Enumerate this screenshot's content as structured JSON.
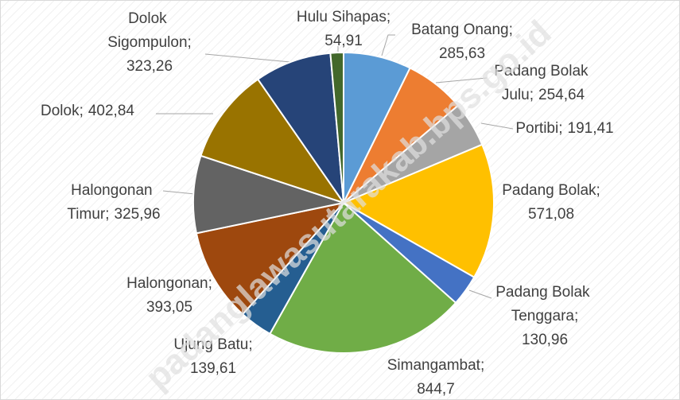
{
  "chart_data": {
    "type": "pie",
    "categories": [
      "Batang Onang;",
      "Padang Bolak Julu;",
      "Portibi;",
      "Padang Bolak;",
      "Padang Bolak Tenggara;",
      "Simangambat;",
      "Ujung Batu;",
      "Halongonan;",
      "Halongonan Timur;",
      "Dolok;",
      "Dolok Sigompulon;",
      "Hulu Sihapas;"
    ],
    "values": [
      285.63,
      254.64,
      191.41,
      571.08,
      130.96,
      844.7,
      139.61,
      393.05,
      325.96,
      402.84,
      323.26,
      54.91
    ],
    "value_labels": [
      "285,63",
      "254,64",
      "191,41",
      "571,08",
      "130,96",
      "844,7",
      "139,61",
      "393,05",
      "325,96",
      "402,84",
      "323,26",
      "54,91"
    ],
    "colors": [
      "#5b9bd5",
      "#ed7d31",
      "#a5a5a5",
      "#ffc000",
      "#4472c4",
      "#70ad47",
      "#255e91",
      "#9e480e",
      "#636363",
      "#997300",
      "#264478",
      "#43682b"
    ],
    "watermark": "padanglawasutarakab.bps.go.id"
  }
}
